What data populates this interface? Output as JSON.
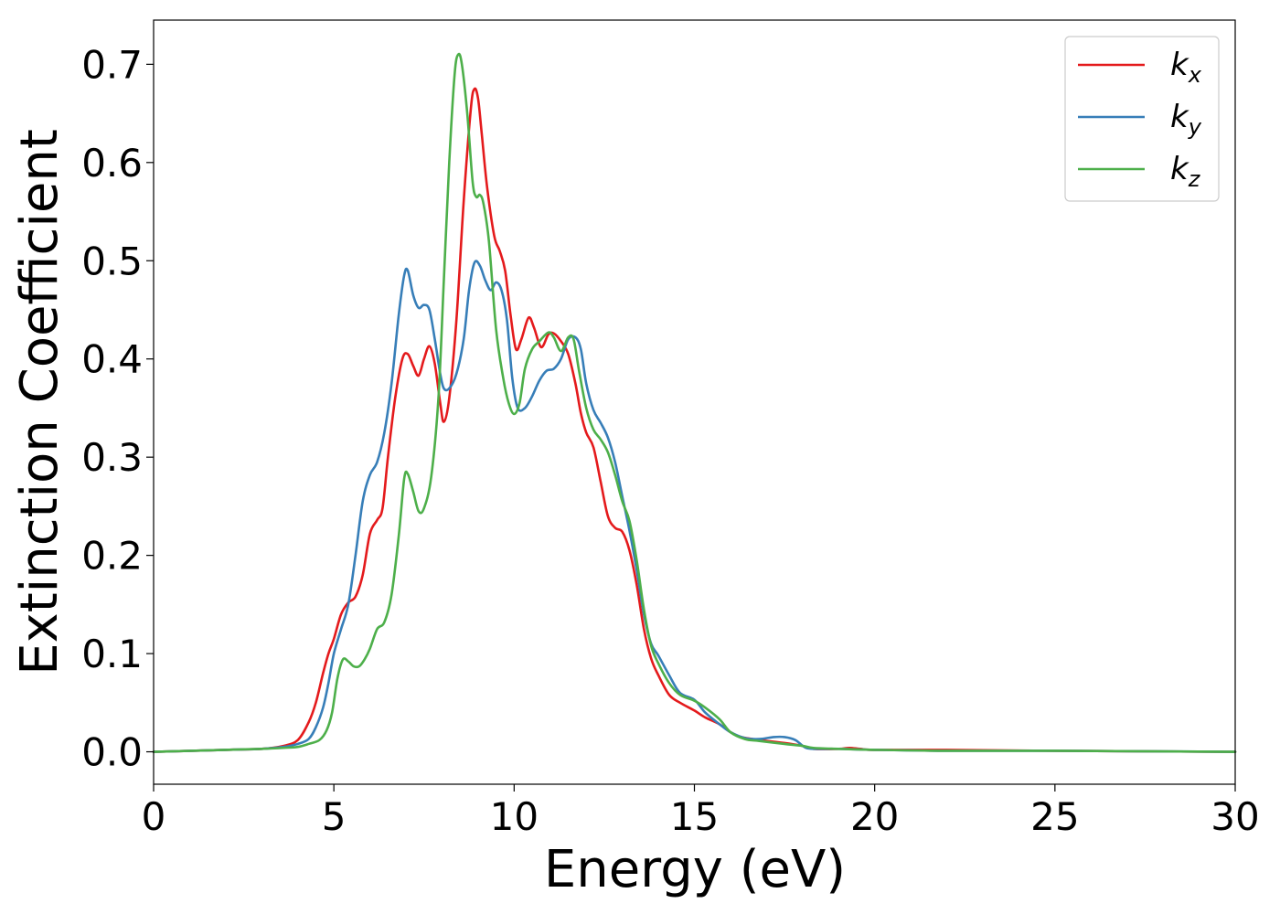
{
  "chart_data": {
    "type": "line",
    "title": "",
    "xlabel": "Energy (eV)",
    "ylabel": "Extinction Coefficient",
    "xlim": [
      0,
      30
    ],
    "ylim": [
      -0.033,
      0.745
    ],
    "xticks": [
      "0",
      "5",
      "10",
      "15",
      "20",
      "25",
      "30"
    ],
    "yticks": [
      "0.0",
      "0.1",
      "0.2",
      "0.3",
      "0.4",
      "0.5",
      "0.6",
      "0.7"
    ],
    "grid": false,
    "legend_position": "top-right",
    "series": [
      {
        "name": "k_x",
        "legend_base": "k",
        "legend_sub": "x",
        "color": "#e41a1c",
        "points": [
          [
            0,
            0.0
          ],
          [
            2,
            0.002
          ],
          [
            3,
            0.003
          ],
          [
            3.6,
            0.006
          ],
          [
            4.0,
            0.012
          ],
          [
            4.3,
            0.03
          ],
          [
            4.5,
            0.05
          ],
          [
            4.7,
            0.08
          ],
          [
            4.85,
            0.1
          ],
          [
            5.0,
            0.115
          ],
          [
            5.2,
            0.14
          ],
          [
            5.4,
            0.152
          ],
          [
            5.6,
            0.158
          ],
          [
            5.8,
            0.18
          ],
          [
            6.0,
            0.222
          ],
          [
            6.2,
            0.236
          ],
          [
            6.35,
            0.248
          ],
          [
            6.5,
            0.3
          ],
          [
            6.7,
            0.36
          ],
          [
            6.9,
            0.4
          ],
          [
            7.05,
            0.405
          ],
          [
            7.2,
            0.393
          ],
          [
            7.35,
            0.383
          ],
          [
            7.5,
            0.4
          ],
          [
            7.65,
            0.413
          ],
          [
            7.8,
            0.395
          ],
          [
            7.95,
            0.355
          ],
          [
            8.05,
            0.336
          ],
          [
            8.2,
            0.36
          ],
          [
            8.4,
            0.44
          ],
          [
            8.6,
            0.56
          ],
          [
            8.8,
            0.655
          ],
          [
            8.9,
            0.675
          ],
          [
            9.0,
            0.665
          ],
          [
            9.1,
            0.63
          ],
          [
            9.25,
            0.575
          ],
          [
            9.45,
            0.525
          ],
          [
            9.6,
            0.51
          ],
          [
            9.75,
            0.49
          ],
          [
            9.9,
            0.445
          ],
          [
            10.05,
            0.41
          ],
          [
            10.2,
            0.42
          ],
          [
            10.4,
            0.442
          ],
          [
            10.55,
            0.432
          ],
          [
            10.75,
            0.412
          ],
          [
            10.95,
            0.425
          ],
          [
            11.1,
            0.426
          ],
          [
            11.3,
            0.418
          ],
          [
            11.5,
            0.405
          ],
          [
            11.7,
            0.375
          ],
          [
            11.85,
            0.345
          ],
          [
            12.0,
            0.325
          ],
          [
            12.2,
            0.31
          ],
          [
            12.4,
            0.275
          ],
          [
            12.6,
            0.24
          ],
          [
            12.8,
            0.228
          ],
          [
            13.0,
            0.224
          ],
          [
            13.2,
            0.205
          ],
          [
            13.4,
            0.17
          ],
          [
            13.6,
            0.125
          ],
          [
            13.8,
            0.095
          ],
          [
            14.0,
            0.078
          ],
          [
            14.3,
            0.058
          ],
          [
            14.6,
            0.05
          ],
          [
            15.0,
            0.042
          ],
          [
            15.3,
            0.035
          ],
          [
            15.7,
            0.028
          ],
          [
            16.0,
            0.02
          ],
          [
            16.3,
            0.015
          ],
          [
            16.8,
            0.012
          ],
          [
            17.5,
            0.009
          ],
          [
            18.0,
            0.006
          ],
          [
            18.3,
            0.003
          ],
          [
            19.0,
            0.003
          ],
          [
            19.3,
            0.004
          ],
          [
            19.6,
            0.003
          ],
          [
            20.0,
            0.002
          ],
          [
            22,
            0.002
          ],
          [
            25,
            0.001
          ],
          [
            30,
            0.0
          ]
        ]
      },
      {
        "name": "k_y",
        "legend_base": "k",
        "legend_sub": "y",
        "color": "#377eb8",
        "points": [
          [
            0,
            0.0
          ],
          [
            2,
            0.002
          ],
          [
            3,
            0.003
          ],
          [
            3.6,
            0.005
          ],
          [
            4.0,
            0.008
          ],
          [
            4.3,
            0.013
          ],
          [
            4.5,
            0.025
          ],
          [
            4.7,
            0.045
          ],
          [
            4.85,
            0.07
          ],
          [
            5.0,
            0.1
          ],
          [
            5.2,
            0.125
          ],
          [
            5.4,
            0.15
          ],
          [
            5.6,
            0.2
          ],
          [
            5.8,
            0.255
          ],
          [
            6.0,
            0.282
          ],
          [
            6.2,
            0.295
          ],
          [
            6.4,
            0.325
          ],
          [
            6.6,
            0.375
          ],
          [
            6.8,
            0.445
          ],
          [
            6.95,
            0.485
          ],
          [
            7.05,
            0.49
          ],
          [
            7.2,
            0.465
          ],
          [
            7.35,
            0.452
          ],
          [
            7.5,
            0.455
          ],
          [
            7.65,
            0.45
          ],
          [
            7.8,
            0.42
          ],
          [
            7.95,
            0.385
          ],
          [
            8.05,
            0.37
          ],
          [
            8.2,
            0.37
          ],
          [
            8.4,
            0.385
          ],
          [
            8.6,
            0.42
          ],
          [
            8.75,
            0.47
          ],
          [
            8.9,
            0.498
          ],
          [
            9.05,
            0.495
          ],
          [
            9.2,
            0.48
          ],
          [
            9.35,
            0.47
          ],
          [
            9.5,
            0.478
          ],
          [
            9.65,
            0.47
          ],
          [
            9.8,
            0.44
          ],
          [
            9.95,
            0.38
          ],
          [
            10.1,
            0.35
          ],
          [
            10.3,
            0.35
          ],
          [
            10.5,
            0.362
          ],
          [
            10.7,
            0.378
          ],
          [
            10.9,
            0.388
          ],
          [
            11.1,
            0.39
          ],
          [
            11.3,
            0.4
          ],
          [
            11.5,
            0.42
          ],
          [
            11.7,
            0.422
          ],
          [
            11.85,
            0.41
          ],
          [
            12.0,
            0.375
          ],
          [
            12.2,
            0.348
          ],
          [
            12.4,
            0.335
          ],
          [
            12.6,
            0.32
          ],
          [
            12.8,
            0.295
          ],
          [
            13.0,
            0.26
          ],
          [
            13.2,
            0.225
          ],
          [
            13.4,
            0.185
          ],
          [
            13.6,
            0.14
          ],
          [
            13.8,
            0.11
          ],
          [
            14.0,
            0.098
          ],
          [
            14.3,
            0.078
          ],
          [
            14.6,
            0.06
          ],
          [
            15.0,
            0.053
          ],
          [
            15.3,
            0.04
          ],
          [
            15.7,
            0.028
          ],
          [
            16.0,
            0.02
          ],
          [
            16.4,
            0.014
          ],
          [
            16.8,
            0.013
          ],
          [
            17.2,
            0.015
          ],
          [
            17.5,
            0.015
          ],
          [
            17.8,
            0.012
          ],
          [
            18.1,
            0.004
          ],
          [
            18.5,
            0.003
          ],
          [
            19.0,
            0.003
          ],
          [
            20,
            0.002
          ],
          [
            22,
            0.001
          ],
          [
            25,
            0.001
          ],
          [
            30,
            0.0
          ]
        ]
      },
      {
        "name": "k_z",
        "legend_base": "k",
        "legend_sub": "z",
        "color": "#4daf4a",
        "points": [
          [
            0,
            0.0
          ],
          [
            2,
            0.002
          ],
          [
            3,
            0.003
          ],
          [
            3.6,
            0.004
          ],
          [
            4.0,
            0.005
          ],
          [
            4.3,
            0.008
          ],
          [
            4.6,
            0.012
          ],
          [
            4.8,
            0.022
          ],
          [
            4.95,
            0.04
          ],
          [
            5.1,
            0.075
          ],
          [
            5.25,
            0.094
          ],
          [
            5.4,
            0.092
          ],
          [
            5.55,
            0.087
          ],
          [
            5.7,
            0.087
          ],
          [
            5.85,
            0.094
          ],
          [
            6.0,
            0.105
          ],
          [
            6.2,
            0.125
          ],
          [
            6.4,
            0.132
          ],
          [
            6.6,
            0.16
          ],
          [
            6.8,
            0.22
          ],
          [
            6.95,
            0.278
          ],
          [
            7.05,
            0.283
          ],
          [
            7.2,
            0.265
          ],
          [
            7.35,
            0.245
          ],
          [
            7.5,
            0.248
          ],
          [
            7.7,
            0.28
          ],
          [
            7.9,
            0.36
          ],
          [
            8.05,
            0.48
          ],
          [
            8.2,
            0.6
          ],
          [
            8.35,
            0.69
          ],
          [
            8.45,
            0.71
          ],
          [
            8.55,
            0.7
          ],
          [
            8.7,
            0.65
          ],
          [
            8.85,
            0.58
          ],
          [
            8.95,
            0.565
          ],
          [
            9.05,
            0.567
          ],
          [
            9.15,
            0.558
          ],
          [
            9.3,
            0.52
          ],
          [
            9.5,
            0.43
          ],
          [
            9.7,
            0.38
          ],
          [
            9.85,
            0.355
          ],
          [
            10.0,
            0.344
          ],
          [
            10.15,
            0.355
          ],
          [
            10.3,
            0.39
          ],
          [
            10.5,
            0.41
          ],
          [
            10.7,
            0.418
          ],
          [
            10.95,
            0.427
          ],
          [
            11.1,
            0.422
          ],
          [
            11.3,
            0.408
          ],
          [
            11.5,
            0.422
          ],
          [
            11.65,
            0.42
          ],
          [
            11.8,
            0.388
          ],
          [
            12.0,
            0.35
          ],
          [
            12.2,
            0.328
          ],
          [
            12.4,
            0.318
          ],
          [
            12.6,
            0.305
          ],
          [
            12.8,
            0.282
          ],
          [
            13.0,
            0.255
          ],
          [
            13.2,
            0.235
          ],
          [
            13.4,
            0.195
          ],
          [
            13.6,
            0.145
          ],
          [
            13.8,
            0.108
          ],
          [
            14.0,
            0.09
          ],
          [
            14.3,
            0.07
          ],
          [
            14.6,
            0.058
          ],
          [
            15.0,
            0.052
          ],
          [
            15.3,
            0.045
          ],
          [
            15.7,
            0.033
          ],
          [
            16.0,
            0.02
          ],
          [
            16.4,
            0.013
          ],
          [
            16.8,
            0.011
          ],
          [
            17.5,
            0.008
          ],
          [
            18.0,
            0.006
          ],
          [
            18.3,
            0.004
          ],
          [
            19.0,
            0.003
          ],
          [
            20,
            0.002
          ],
          [
            22,
            0.001
          ],
          [
            25,
            0.001
          ],
          [
            30,
            0.0
          ]
        ]
      }
    ]
  }
}
